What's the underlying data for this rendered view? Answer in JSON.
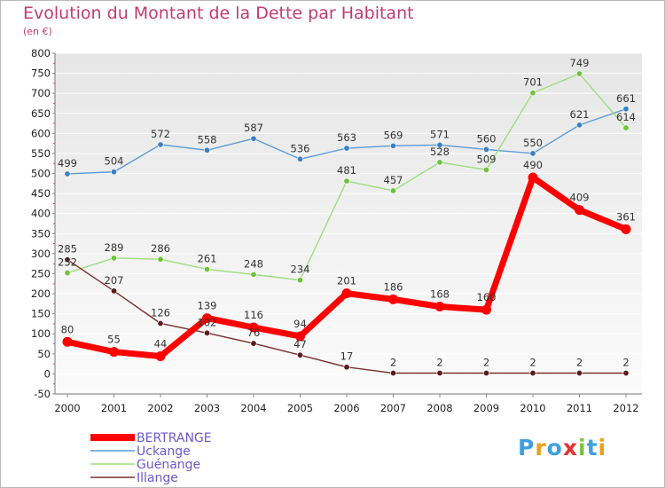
{
  "header": {
    "title": "Evolution du Montant de la Dette par Habitant",
    "unit": "(en €)"
  },
  "colors": {
    "title": "#c43a73",
    "legend_text": "#6a5acd"
  },
  "logo": {
    "letters": [
      "P",
      "r",
      "o",
      "x",
      "i",
      "t",
      "i"
    ],
    "colors": [
      "#3fa0e0",
      "#e8a020",
      "#3fa0e0",
      "#e83030",
      "#7dc241",
      "#3fa0e0",
      "#e8a020"
    ]
  },
  "chart_data": {
    "type": "line",
    "title": "Evolution du Montant de la Dette par Habitant",
    "subtitle": "(en €)",
    "xlabel": "",
    "ylabel": "",
    "x": [
      "2000",
      "2001",
      "2002",
      "2003",
      "2004",
      "2005",
      "2006",
      "2007",
      "2008",
      "2009",
      "2010",
      "2011",
      "2012"
    ],
    "ylim": [
      -50,
      800
    ],
    "yticks": [
      -50,
      0,
      50,
      100,
      150,
      200,
      250,
      300,
      350,
      400,
      450,
      500,
      550,
      600,
      650,
      700,
      750,
      800
    ],
    "grid": "horizontal",
    "legend": "bottom-left",
    "series": [
      {
        "name": "Uckange",
        "color": "#5b9bd5",
        "point_color": "#3c7fc0",
        "values": [
          499,
          504,
          572,
          558,
          587,
          536,
          563,
          569,
          571,
          560,
          550,
          621,
          661
        ]
      },
      {
        "name": "Guénange",
        "color": "#9cde7e",
        "point_color": "#6fc23a",
        "values": [
          252,
          289,
          286,
          261,
          248,
          234,
          481,
          457,
          528,
          509,
          701,
          749,
          614
        ]
      },
      {
        "name": "Illange",
        "color": "#7a2e2e",
        "point_color": "#5a1c1c",
        "values": [
          285,
          207,
          126,
          102,
          76,
          47,
          17,
          2,
          2,
          2,
          2,
          2,
          2
        ]
      },
      {
        "name": "BERTRANGE",
        "color": "#ff0000",
        "point_color": "#ff0000",
        "values": [
          80,
          55,
          44,
          139,
          116,
          94,
          201,
          186,
          168,
          160,
          490,
          409,
          361
        ]
      }
    ],
    "legend_order": [
      "BERTRANGE",
      "Uckange",
      "Guénange",
      "Illange"
    ]
  }
}
